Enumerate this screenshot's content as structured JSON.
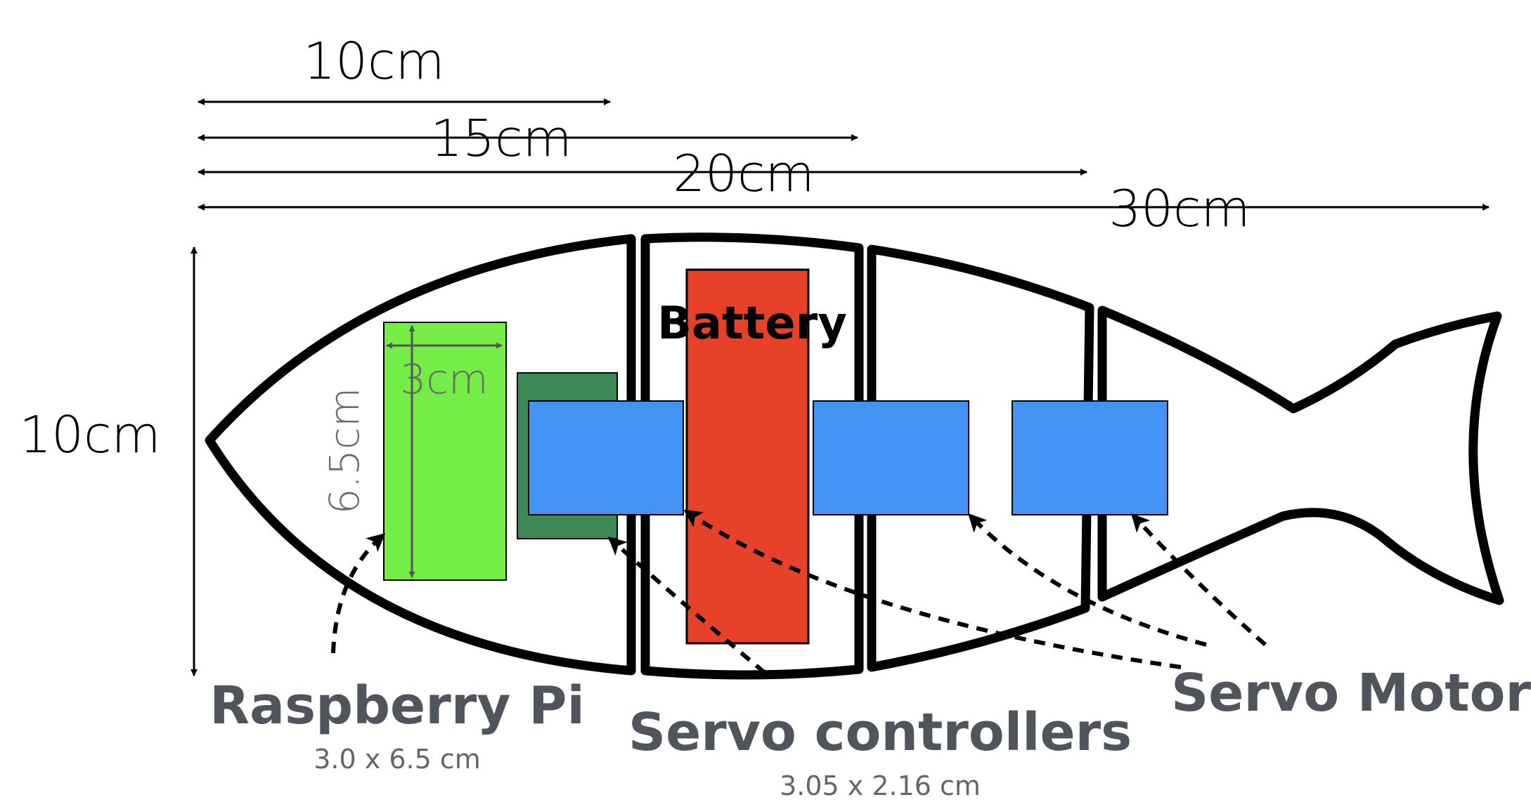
{
  "dimensions": {
    "d10": "10cm",
    "d15": "15cm",
    "d20": "20cm",
    "d30": "30cm",
    "height": "10cm",
    "pi_width": "3cm",
    "pi_height": "6.5cm"
  },
  "components": {
    "battery": "Battery",
    "raspberry_pi": "Raspberry Pi",
    "raspberry_pi_size": "3.0 x 6.5 cm",
    "servo_controllers": "Servo controllers",
    "servo_controllers_size": "3.05 x 2.16 cm",
    "servo_motor": "Servo Motor"
  },
  "colors": {
    "raspberry_pi": "#74ee47",
    "controller_board": "#3b8a55",
    "battery": "#e8412a",
    "servo": "#4393f5",
    "outline": "#000000",
    "label": "#50555c"
  }
}
